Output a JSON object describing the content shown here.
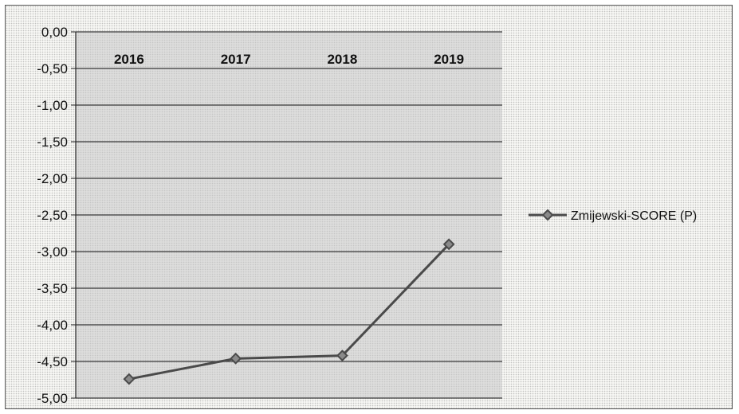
{
  "chart_data": {
    "type": "line",
    "categories": [
      "2016",
      "2017",
      "2018",
      "2019"
    ],
    "series": [
      {
        "name": "Zmijewski-SCORE (P)",
        "values": [
          -4.74,
          -4.46,
          -4.42,
          -2.9
        ],
        "color": "#4a4a4a"
      }
    ],
    "ylim": [
      -5.0,
      0.0
    ],
    "y_ticks": [
      "0,00",
      "-0,50",
      "-1,00",
      "-1,50",
      "-2,00",
      "-2,50",
      "-3,00",
      "-3,50",
      "-4,00",
      "-4,50",
      "-5,00"
    ],
    "x_axis_position": "top",
    "grid": true,
    "legend": "right",
    "plot_background": "#c9c9c9"
  }
}
